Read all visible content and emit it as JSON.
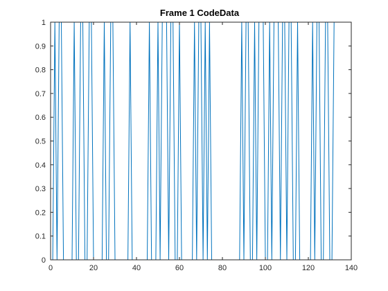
{
  "chart_data": {
    "type": "line",
    "title": "Frame 1 CodeData",
    "xlabel": "",
    "ylabel": "",
    "xlim": [
      0,
      140
    ],
    "ylim": [
      0,
      1
    ],
    "grid": false,
    "x_ticks": [
      0,
      20,
      40,
      60,
      80,
      100,
      120,
      140
    ],
    "y_ticks": [
      0,
      0.1,
      0.2,
      0.3,
      0.4,
      0.5,
      0.6,
      0.7,
      0.8,
      0.9,
      1
    ],
    "x_tick_labels": [
      "0",
      "20",
      "40",
      "60",
      "80",
      "100",
      "120",
      "140"
    ],
    "y_tick_labels": [
      "0",
      "0.1",
      "0.2",
      "0.3",
      "0.4",
      "0.5",
      "0.6",
      "0.7",
      "0.8",
      "0.9",
      "1"
    ],
    "series": [
      {
        "color": "#0072bd",
        "x": [
          1,
          2,
          3,
          4,
          5,
          6,
          7,
          8,
          9,
          10,
          11,
          12,
          13,
          14,
          15,
          16,
          17,
          18,
          19,
          20,
          21,
          22,
          23,
          24,
          25,
          26,
          27,
          28,
          29,
          30,
          31,
          32,
          33,
          34,
          35,
          36,
          37,
          38,
          39,
          40,
          41,
          42,
          43,
          44,
          45,
          46,
          47,
          48,
          49,
          50,
          51,
          52,
          53,
          54,
          55,
          56,
          57,
          58,
          59,
          60,
          61,
          62,
          63,
          64,
          65,
          66,
          67,
          68,
          69,
          70,
          71,
          72,
          73,
          74,
          75,
          76,
          77,
          78,
          79,
          80,
          81,
          82,
          83,
          84,
          85,
          86,
          87,
          88,
          89,
          90,
          91,
          92,
          93,
          94,
          95,
          96,
          97,
          98,
          99,
          100,
          101,
          102,
          103,
          104,
          105,
          106,
          107,
          108,
          109,
          110,
          111,
          112,
          113,
          114,
          115,
          116,
          117,
          118,
          119,
          120,
          121,
          122,
          123,
          124,
          125,
          126,
          127,
          128,
          129,
          130,
          131,
          132
        ],
        "values": [
          0,
          1,
          0,
          1,
          1,
          0,
          0,
          0,
          0,
          0,
          1,
          0,
          0,
          1,
          1,
          0,
          0,
          1,
          1,
          0,
          0,
          0,
          0,
          0,
          1,
          0,
          0,
          1,
          1,
          0,
          0,
          0,
          0,
          0,
          0,
          0,
          1,
          0,
          0,
          0,
          0,
          0,
          0,
          0,
          0,
          1,
          0,
          0,
          0,
          1,
          0,
          1,
          1,
          1,
          0,
          1,
          1,
          0,
          0,
          1,
          0,
          0,
          0,
          0,
          0,
          0,
          1,
          0,
          1,
          1,
          0,
          1,
          0,
          1,
          0,
          0,
          0,
          0,
          0,
          0,
          0,
          0,
          0,
          0,
          0,
          0,
          0,
          0,
          1,
          0,
          1,
          1,
          0,
          0,
          1,
          0,
          1,
          1,
          1,
          0,
          0,
          1,
          0,
          1,
          1,
          1,
          0,
          1,
          1,
          0,
          1,
          1,
          0,
          0,
          1,
          0,
          0,
          0,
          0,
          0,
          0,
          1,
          0,
          1,
          1,
          0,
          0,
          1,
          1,
          0,
          0,
          1
        ]
      }
    ]
  }
}
